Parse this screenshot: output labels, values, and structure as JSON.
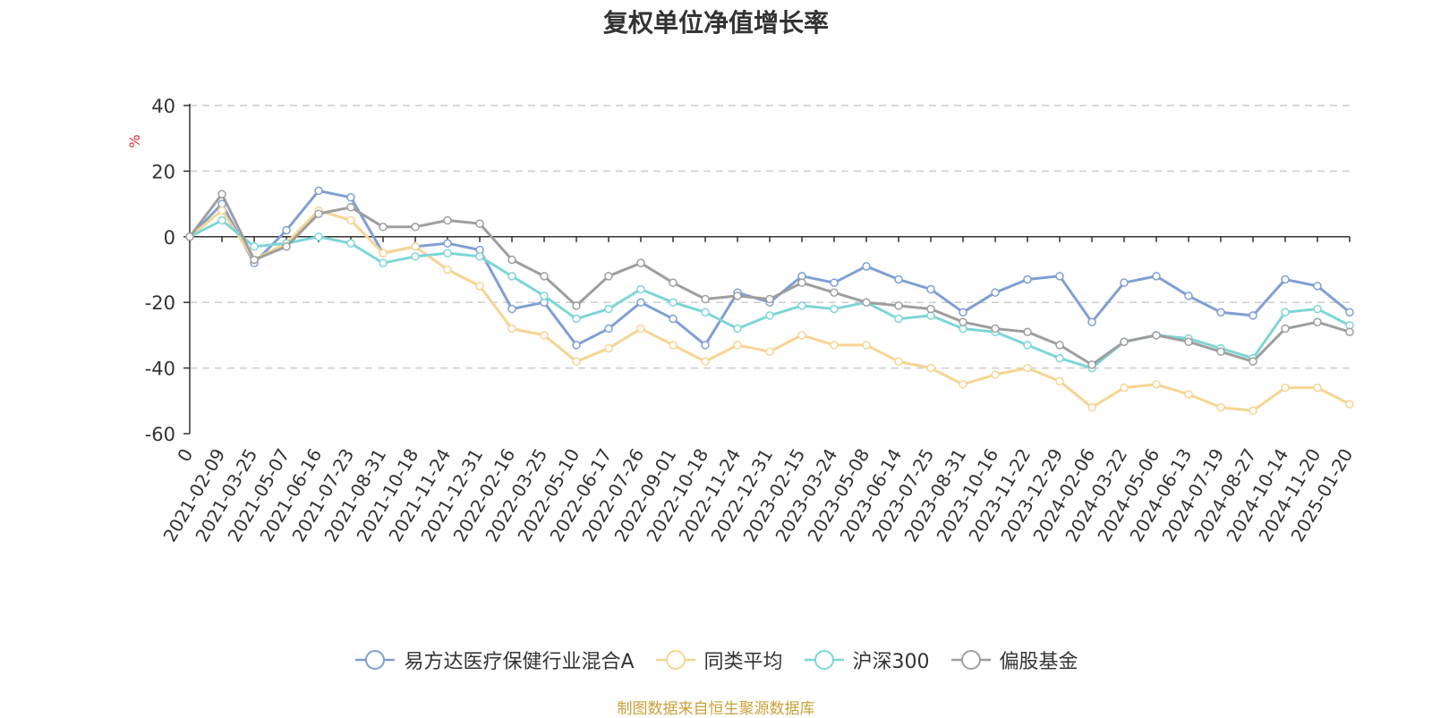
{
  "chart_data": {
    "type": "line",
    "title": "复权单位净值增长率",
    "ylabel": "%",
    "ylim": [
      -60,
      40
    ],
    "yticks": [
      40,
      20,
      0,
      -20,
      -40,
      -60
    ],
    "grid": true,
    "legend_position": "bottom",
    "categories": [
      "0",
      "2021-02-09",
      "2021-03-25",
      "2021-05-07",
      "2021-06-16",
      "2021-07-23",
      "2021-08-31",
      "2021-10-18",
      "2021-11-24",
      "2021-12-31",
      "2022-02-16",
      "2022-03-25",
      "2022-05-10",
      "2022-06-17",
      "2022-07-26",
      "2022-09-01",
      "2022-10-18",
      "2022-11-24",
      "2022-12-31",
      "2023-02-15",
      "2023-03-24",
      "2023-05-08",
      "2023-06-14",
      "2023-07-25",
      "2023-08-31",
      "2023-10-16",
      "2023-11-22",
      "2023-12-29",
      "2024-02-06",
      "2024-03-22",
      "2024-05-06",
      "2024-06-13",
      "2024-07-19",
      "2024-08-27",
      "2024-10-14",
      "2024-11-20",
      "2025-01-20"
    ],
    "series": [
      {
        "name": "易方达医疗保健行业混合A",
        "color": "#7f9fd4",
        "values": [
          0,
          10,
          -8,
          2,
          14,
          12,
          -5,
          -3,
          -2,
          -4,
          -22,
          -20,
          -33,
          -28,
          -20,
          -25,
          -33,
          -17,
          -20,
          -12,
          -14,
          -9,
          -13,
          -16,
          -23,
          -17,
          -13,
          -12,
          -26,
          -14,
          -12,
          -18,
          -23,
          -24,
          -13,
          -15,
          -23
        ]
      },
      {
        "name": "同类平均",
        "color": "#f7d492",
        "values": [
          0,
          8,
          -7,
          -2,
          8,
          5,
          -5,
          -3,
          -10,
          -15,
          -28,
          -30,
          -38,
          -34,
          -28,
          -33,
          -38,
          -33,
          -35,
          -30,
          -33,
          -33,
          -38,
          -40,
          -45,
          -42,
          -40,
          -44,
          -52,
          -46,
          -45,
          -48,
          -52,
          -53,
          -46,
          -46,
          -51
        ]
      },
      {
        "name": "沪深300",
        "color": "#7dd6d6",
        "values": [
          0,
          5,
          -3,
          -2,
          0,
          -2,
          -8,
          -6,
          -5,
          -6,
          -12,
          -18,
          -25,
          -22,
          -16,
          -20,
          -23,
          -28,
          -24,
          -21,
          -22,
          -20,
          -25,
          -24,
          -28,
          -29,
          -33,
          -37,
          -40,
          -32,
          -30,
          -31,
          -34,
          -37,
          -23,
          -22,
          -27
        ]
      },
      {
        "name": "偏股基金",
        "color": "#9e9e9e",
        "values": [
          0,
          13,
          -7,
          -3,
          7,
          9,
          3,
          3,
          5,
          4,
          -7,
          -12,
          -21,
          -12,
          -8,
          -14,
          -19,
          -18,
          -19,
          -14,
          -17,
          -20,
          -21,
          -22,
          -26,
          -28,
          -29,
          -33,
          -39,
          -32,
          -30,
          -32,
          -35,
          -38,
          -28,
          -26,
          -29
        ]
      }
    ]
  },
  "source_note": "制图数据来自恒生聚源数据库"
}
